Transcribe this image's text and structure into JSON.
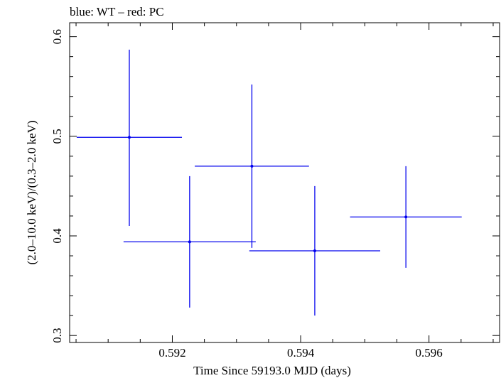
{
  "chart_data": {
    "type": "scatter",
    "title": "blue: WT – red: PC",
    "xlabel": "Time Since 59193.0 MJD (days)",
    "ylabel": "(2.0–10.0 keV)/(0.3–2.0 keV)",
    "xlim": [
      0.5904,
      0.5971
    ],
    "ylim": [
      0.293,
      0.614
    ],
    "xticks": [
      0.592,
      0.594,
      0.596
    ],
    "xtick_labels": [
      "0.592",
      "0.594",
      "0.596"
    ],
    "yticks": [
      0.3,
      0.4,
      0.5,
      0.6
    ],
    "ytick_labels": [
      "0.3",
      "0.4",
      "0.5",
      "0.6"
    ],
    "grid": false,
    "series": [
      {
        "name": "WT",
        "color": "#0000ee",
        "points": [
          {
            "x": 0.59133,
            "y": 0.499,
            "xerr": 0.00082,
            "yerr_lo": 0.089,
            "yerr_hi": 0.088
          },
          {
            "x": 0.59227,
            "y": 0.394,
            "xerr": 0.00103,
            "yerr_lo": 0.066,
            "yerr_hi": 0.066
          },
          {
            "x": 0.59324,
            "y": 0.47,
            "xerr": 0.00089,
            "yerr_lo": 0.082,
            "yerr_hi": 0.082
          },
          {
            "x": 0.59422,
            "y": 0.385,
            "xerr": 0.00102,
            "yerr_lo": 0.065,
            "yerr_hi": 0.065
          },
          {
            "x": 0.59564,
            "y": 0.419,
            "xerr": 0.00087,
            "yerr_lo": 0.051,
            "yerr_hi": 0.051
          }
        ]
      }
    ]
  }
}
